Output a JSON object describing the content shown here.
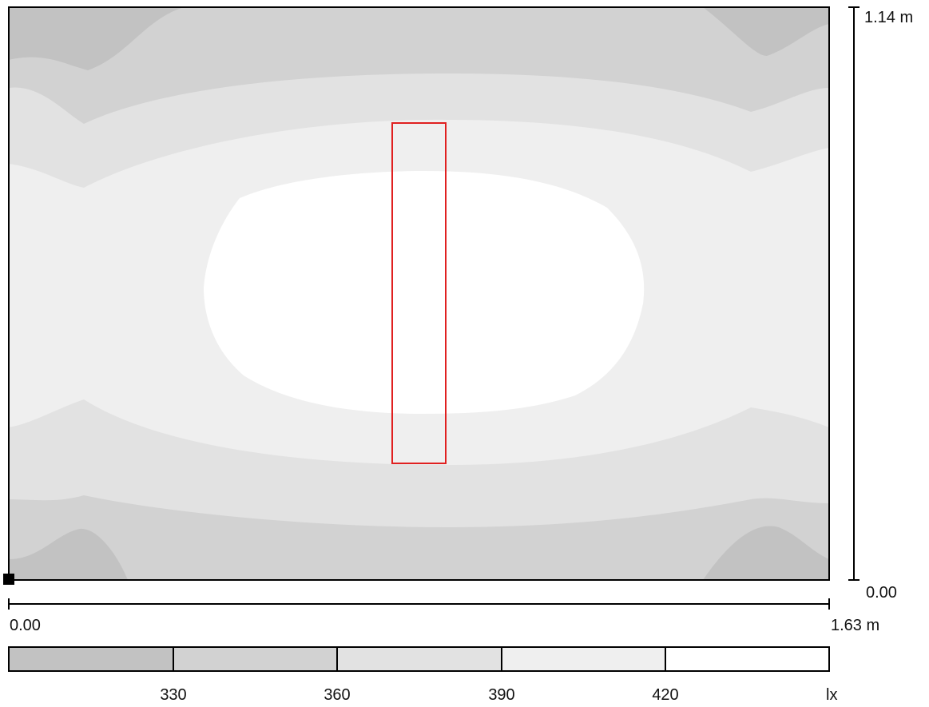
{
  "dimensions": {
    "y_max_label": "1.14 m",
    "y_min_label": "0.00",
    "x_min_label": "0.00",
    "x_max_label": "1.63 m"
  },
  "legend": {
    "unit": "lx",
    "values": [
      "330",
      "360",
      "390",
      "420"
    ],
    "colors": [
      "#c2c2c2",
      "#d2d2d2",
      "#e2e2e2",
      "#efefef",
      "#ffffff"
    ]
  },
  "colors": {
    "frame": "#000000",
    "highlight": "#e02020"
  }
}
